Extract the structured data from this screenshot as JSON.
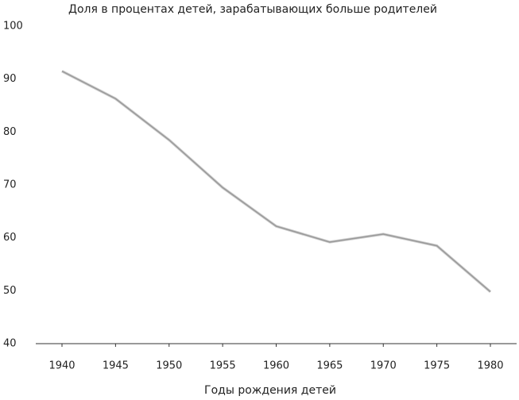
{
  "chart_data": {
    "type": "line",
    "title": "Доля в процентах детей, зарабатывающих больше родителей",
    "x_label": "Годы рождения детей",
    "x": [
      1940,
      1945,
      1950,
      1955,
      1960,
      1965,
      1970,
      1975,
      1980
    ],
    "values": [
      91.5,
      86.3,
      78.5,
      69.5,
      62.2,
      59.2,
      60.7,
      58.5,
      49.8
    ],
    "color": "#9a9a9a",
    "xlim": [
      1940,
      1980
    ],
    "xticks": [
      1940,
      1945,
      1950,
      1955,
      1960,
      1965,
      1970,
      1975,
      1980
    ],
    "ylim": [
      40,
      100
    ],
    "yticks": [
      40,
      50,
      60,
      70,
      80,
      90,
      100
    ],
    "grid": false
  }
}
